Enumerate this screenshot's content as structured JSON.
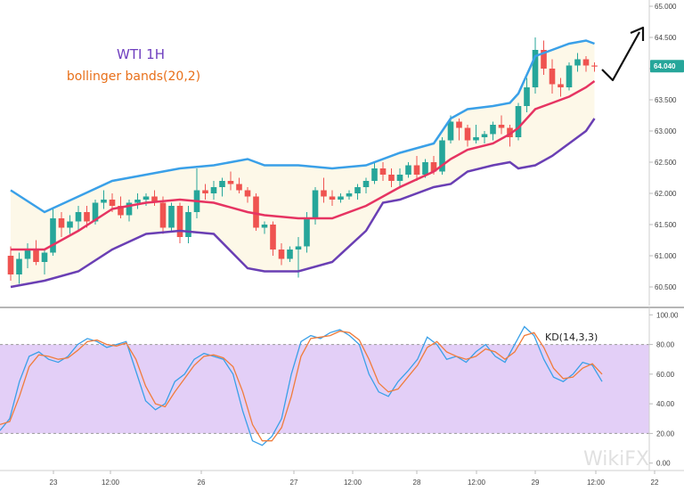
{
  "chart_data": [
    {
      "type": "candlestick",
      "title": "WTI 1H",
      "subtitle": "bollinger bands(20,2)",
      "ylim": [
        60.2,
        65.1
      ],
      "y_ticks": [
        "65.000",
        "64.500",
        "64.000",
        "63.500",
        "63.000",
        "62.500",
        "62.000",
        "61.500",
        "61.000",
        "60.500"
      ],
      "last_price": "64.040",
      "colors": {
        "up": "#26a69a",
        "down": "#ef5350",
        "upper_band": "#3aa0e8",
        "middle_band": "#e63462",
        "lower_band": "#6a3fb4",
        "band_fill": "#fdf8e8",
        "badge": "#26a69a"
      },
      "candles_ohlc": [
        [
          61.0,
          61.15,
          60.6,
          60.7
        ],
        [
          60.7,
          61.05,
          60.55,
          60.95
        ],
        [
          60.95,
          61.2,
          60.8,
          61.1
        ],
        [
          61.1,
          61.25,
          60.85,
          60.9
        ],
        [
          60.9,
          61.1,
          60.7,
          61.05
        ],
        [
          61.05,
          61.75,
          61.0,
          61.6
        ],
        [
          61.6,
          61.7,
          61.3,
          61.45
        ],
        [
          61.45,
          61.65,
          61.35,
          61.55
        ],
        [
          61.55,
          61.8,
          61.4,
          61.7
        ],
        [
          61.7,
          61.8,
          61.45,
          61.55
        ],
        [
          61.55,
          61.9,
          61.5,
          61.85
        ],
        [
          61.85,
          62.05,
          61.75,
          61.9
        ],
        [
          61.9,
          62.0,
          61.7,
          61.8
        ],
        [
          61.8,
          61.95,
          61.6,
          61.65
        ],
        [
          61.65,
          61.9,
          61.55,
          61.85
        ],
        [
          61.85,
          62.0,
          61.75,
          61.9
        ],
        [
          61.9,
          62.0,
          61.8,
          61.95
        ],
        [
          61.95,
          62.05,
          61.8,
          61.85
        ],
        [
          61.85,
          61.95,
          61.35,
          61.45
        ],
        [
          61.45,
          61.85,
          61.4,
          61.8
        ],
        [
          61.8,
          61.85,
          61.2,
          61.3
        ],
        [
          61.3,
          61.8,
          61.2,
          61.7
        ],
        [
          61.7,
          62.4,
          61.6,
          62.05
        ],
        [
          62.05,
          62.15,
          61.9,
          62.0
        ],
        [
          62.0,
          62.2,
          61.9,
          62.1
        ],
        [
          62.1,
          62.25,
          61.95,
          62.2
        ],
        [
          62.2,
          62.35,
          62.05,
          62.15
        ],
        [
          62.15,
          62.25,
          62.0,
          62.05
        ],
        [
          62.05,
          62.1,
          61.85,
          61.95
        ],
        [
          61.95,
          62.0,
          61.4,
          61.45
        ],
        [
          61.45,
          61.55,
          61.35,
          61.5
        ],
        [
          61.5,
          61.55,
          61.0,
          61.1
        ],
        [
          61.1,
          61.2,
          60.85,
          60.95
        ],
        [
          60.95,
          61.15,
          60.9,
          61.1
        ],
        [
          61.1,
          61.3,
          60.65,
          61.15
        ],
        [
          61.15,
          61.7,
          61.05,
          61.6
        ],
        [
          61.6,
          62.1,
          61.5,
          62.05
        ],
        [
          62.05,
          62.25,
          61.85,
          61.95
        ],
        [
          61.95,
          62.05,
          61.8,
          61.9
        ],
        [
          61.9,
          62.0,
          61.85,
          61.95
        ],
        [
          61.95,
          62.05,
          61.9,
          62.0
        ],
        [
          62.0,
          62.15,
          61.9,
          62.1
        ],
        [
          62.1,
          62.25,
          62.0,
          62.2
        ],
        [
          62.2,
          62.5,
          62.15,
          62.4
        ],
        [
          62.4,
          62.5,
          62.2,
          62.3
        ],
        [
          62.3,
          62.4,
          62.1,
          62.2
        ],
        [
          62.2,
          62.4,
          62.1,
          62.3
        ],
        [
          62.3,
          62.5,
          62.25,
          62.45
        ],
        [
          62.45,
          62.6,
          62.2,
          62.3
        ],
        [
          62.3,
          62.55,
          62.25,
          62.5
        ],
        [
          62.5,
          62.6,
          62.3,
          62.35
        ],
        [
          62.35,
          62.9,
          62.3,
          62.85
        ],
        [
          62.85,
          63.25,
          62.8,
          63.15
        ],
        [
          63.15,
          63.2,
          62.85,
          63.05
        ],
        [
          63.05,
          63.1,
          62.75,
          62.85
        ],
        [
          62.85,
          63.1,
          62.8,
          62.9
        ],
        [
          62.9,
          63.0,
          62.8,
          62.95
        ],
        [
          62.95,
          63.15,
          62.85,
          63.1
        ],
        [
          63.1,
          63.25,
          62.95,
          63.05
        ],
        [
          63.05,
          63.1,
          62.75,
          62.9
        ],
        [
          62.9,
          63.45,
          62.85,
          63.4
        ],
        [
          63.4,
          63.85,
          63.3,
          63.7
        ],
        [
          63.7,
          64.5,
          63.6,
          64.3
        ],
        [
          64.3,
          64.45,
          63.9,
          64.0
        ],
        [
          64.0,
          64.15,
          63.6,
          63.75
        ],
        [
          63.75,
          63.85,
          63.55,
          63.7
        ],
        [
          63.7,
          64.1,
          63.65,
          64.05
        ],
        [
          64.05,
          64.25,
          63.95,
          64.15
        ],
        [
          64.15,
          64.2,
          63.95,
          64.05
        ],
        [
          64.05,
          64.1,
          63.95,
          64.04
        ]
      ],
      "bollinger_upper": [
        [
          0,
          62.05
        ],
        [
          4,
          61.7
        ],
        [
          8,
          61.95
        ],
        [
          12,
          62.2
        ],
        [
          16,
          62.3
        ],
        [
          20,
          62.4
        ],
        [
          24,
          62.45
        ],
        [
          28,
          62.55
        ],
        [
          30,
          62.45
        ],
        [
          34,
          62.45
        ],
        [
          38,
          62.4
        ],
        [
          42,
          62.45
        ],
        [
          46,
          62.65
        ],
        [
          50,
          62.8
        ],
        [
          52,
          63.2
        ],
        [
          54,
          63.35
        ],
        [
          57,
          63.4
        ],
        [
          59,
          63.45
        ],
        [
          60,
          63.6
        ],
        [
          62,
          64.2
        ],
        [
          64,
          64.3
        ],
        [
          66,
          64.4
        ],
        [
          68,
          64.45
        ],
        [
          69,
          64.4
        ]
      ],
      "bollinger_middle": [
        [
          0,
          61.1
        ],
        [
          4,
          61.1
        ],
        [
          8,
          61.4
        ],
        [
          12,
          61.75
        ],
        [
          16,
          61.85
        ],
        [
          20,
          61.9
        ],
        [
          24,
          61.85
        ],
        [
          28,
          61.7
        ],
        [
          30,
          61.65
        ],
        [
          34,
          61.6
        ],
        [
          38,
          61.6
        ],
        [
          42,
          61.8
        ],
        [
          46,
          62.1
        ],
        [
          50,
          62.35
        ],
        [
          52,
          62.55
        ],
        [
          54,
          62.7
        ],
        [
          57,
          62.8
        ],
        [
          59,
          62.95
        ],
        [
          60,
          63.05
        ],
        [
          62,
          63.35
        ],
        [
          64,
          63.45
        ],
        [
          66,
          63.55
        ],
        [
          68,
          63.7
        ],
        [
          69,
          63.8
        ]
      ],
      "bollinger_lower": [
        [
          0,
          60.5
        ],
        [
          4,
          60.6
        ],
        [
          8,
          60.75
        ],
        [
          12,
          61.1
        ],
        [
          16,
          61.35
        ],
        [
          20,
          61.4
        ],
        [
          24,
          61.35
        ],
        [
          28,
          60.8
        ],
        [
          30,
          60.75
        ],
        [
          34,
          60.75
        ],
        [
          38,
          60.9
        ],
        [
          42,
          61.4
        ],
        [
          44,
          61.85
        ],
        [
          46,
          61.9
        ],
        [
          50,
          62.1
        ],
        [
          52,
          62.15
        ],
        [
          54,
          62.35
        ],
        [
          57,
          62.45
        ],
        [
          59,
          62.5
        ],
        [
          60,
          62.4
        ],
        [
          62,
          62.45
        ],
        [
          64,
          62.6
        ],
        [
          66,
          62.8
        ],
        [
          68,
          63.0
        ],
        [
          69,
          63.2
        ]
      ]
    },
    {
      "type": "line",
      "title": "KD(14,3,3)",
      "ylim": [
        -5,
        105
      ],
      "y_ticks": [
        "100.00",
        "80.00",
        "60.00",
        "40.00",
        "20.00",
        "0.00"
      ],
      "overbought": 80,
      "oversold": 20,
      "colors": {
        "k_line": "#3aa0e8",
        "d_line": "#f07c3c",
        "zone_fill": "#e3cff7",
        "zone_border": "#9a9a9a"
      },
      "series": [
        {
          "values": [
            22,
            30,
            55,
            72,
            75,
            70,
            68,
            72,
            80,
            84,
            82,
            78,
            80,
            82,
            62,
            42,
            36,
            40,
            55,
            60,
            70,
            74,
            72,
            70,
            60,
            35,
            15,
            12,
            18,
            30,
            60,
            82,
            86,
            84,
            88,
            90,
            86,
            80,
            60,
            48,
            45,
            55,
            62,
            70,
            85,
            80,
            70,
            72,
            68,
            75,
            80,
            72,
            68,
            80,
            92,
            86,
            70,
            58,
            55,
            60,
            68,
            66,
            55
          ]
        },
        {
          "values": [
            26,
            28,
            45,
            65,
            73,
            72,
            70,
            71,
            76,
            82,
            83,
            80,
            79,
            81,
            70,
            52,
            40,
            38,
            48,
            57,
            66,
            72,
            73,
            71,
            65,
            48,
            26,
            15,
            15,
            24,
            45,
            72,
            84,
            85,
            86,
            89,
            88,
            83,
            70,
            54,
            48,
            50,
            58,
            66,
            78,
            82,
            75,
            72,
            70,
            72,
            77,
            75,
            70,
            75,
            86,
            88,
            78,
            64,
            57,
            58,
            64,
            67,
            60
          ]
        }
      ]
    }
  ],
  "x_axis": {
    "labels": [
      "23",
      "12:00",
      "26",
      "27",
      "12:00",
      "28",
      "12:00",
      "29",
      "12:00",
      "22"
    ]
  },
  "watermark": "WikiFX"
}
